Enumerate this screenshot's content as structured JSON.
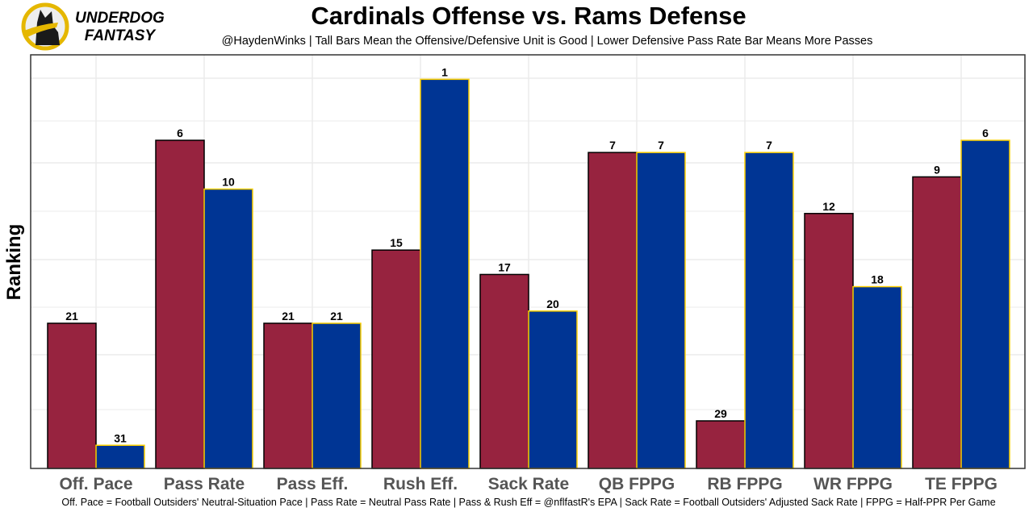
{
  "logo": {
    "text": "UNDERDOG FANTASY",
    "line1": "UNDERDOG",
    "line2": "FANTASY"
  },
  "chart_data": {
    "type": "bar",
    "title": "Cardinals Offense vs. Rams Defense",
    "subtitle": "@HaydenWinks | Tall Bars Mean the Offensive/Defensive Unit is Good | Lower Defensive Pass Rate Bar Means More Passes",
    "caption": "Off. Pace = Football Outsiders' Neutral-Situation Pace | Pass Rate = Neutral Pass Rate | Pass & Rush Eff = @nflfastR's EPA | Sack Rate = Football Outsiders' Adjusted Sack Rate | FPPG = Half-PPR Per Game",
    "xlabel": "",
    "ylabel": "Ranking",
    "y_reversed": true,
    "ylim": [
      33,
      0
    ],
    "grid": true,
    "legend": "none",
    "categories": [
      "Off. Pace",
      "Pass Rate",
      "Pass Eff.",
      "Rush Eff.",
      "Sack Rate",
      "QB FPPG",
      "RB FPPG",
      "WR FPPG",
      "TE FPPG"
    ],
    "series": [
      {
        "values": [
          21,
          6,
          21,
          15,
          17,
          7,
          29,
          12,
          9
        ],
        "color": "#97233F",
        "edge": "#000000"
      },
      {
        "values": [
          31,
          10,
          21,
          1,
          20,
          7,
          7,
          18,
          6
        ],
        "color": "#003594",
        "edge": "#FFD100"
      }
    ]
  }
}
